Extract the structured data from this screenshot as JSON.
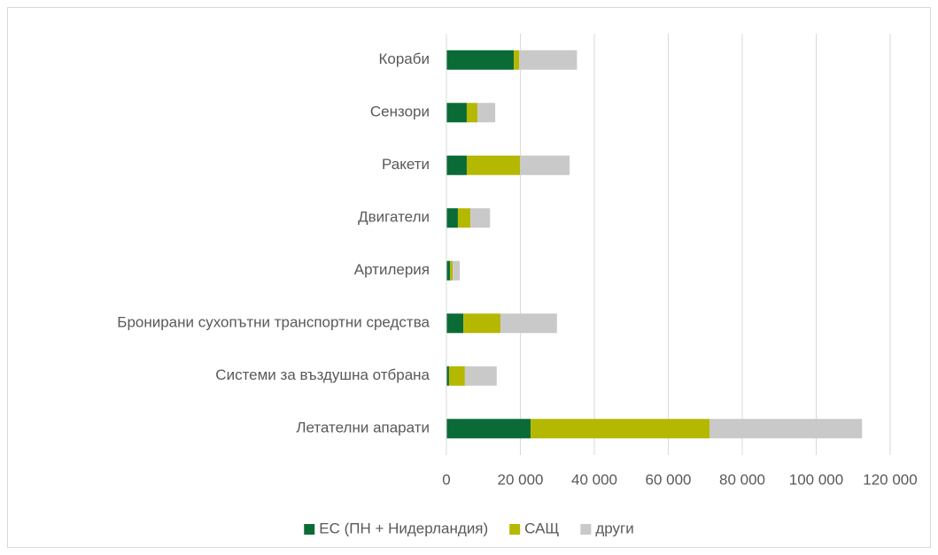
{
  "chart_data": {
    "type": "stacked_barh",
    "categories": [
      "Кораби",
      "Сензори",
      "Ракети",
      "Двигатели",
      "Артилерия",
      "Бронирани сухопътни транспортни средства",
      "Системи за въздушна отбрана",
      "Летателни апарати"
    ],
    "series": [
      {
        "name": "ЕС (ПН + Нидерландия)",
        "color": "#0b6b36",
        "values": [
          18200,
          5500,
          5500,
          3100,
          1000,
          4600,
          700,
          22800
        ]
      },
      {
        "name": "САЩ",
        "color": "#b5b800",
        "values": [
          1500,
          2900,
          14400,
          3400,
          700,
          10000,
          4300,
          48400
        ]
      },
      {
        "name": "други",
        "color": "#c9c9c9",
        "values": [
          15600,
          4800,
          13400,
          5300,
          1900,
          15300,
          8600,
          41200
        ]
      }
    ],
    "xlim": [
      0,
      120000
    ],
    "xticks": [
      0,
      {
        "value": 20000,
        "label": "20 000"
      },
      {
        "value": 40000,
        "label": "40 000"
      },
      {
        "value": 60000,
        "label": "60 000"
      },
      {
        "value": 80000,
        "label": "80 000"
      },
      {
        "value": 100000,
        "label": "100 000"
      },
      {
        "value": 120000,
        "label": "120 000"
      }
    ],
    "grid": true,
    "legend": "bottom"
  }
}
